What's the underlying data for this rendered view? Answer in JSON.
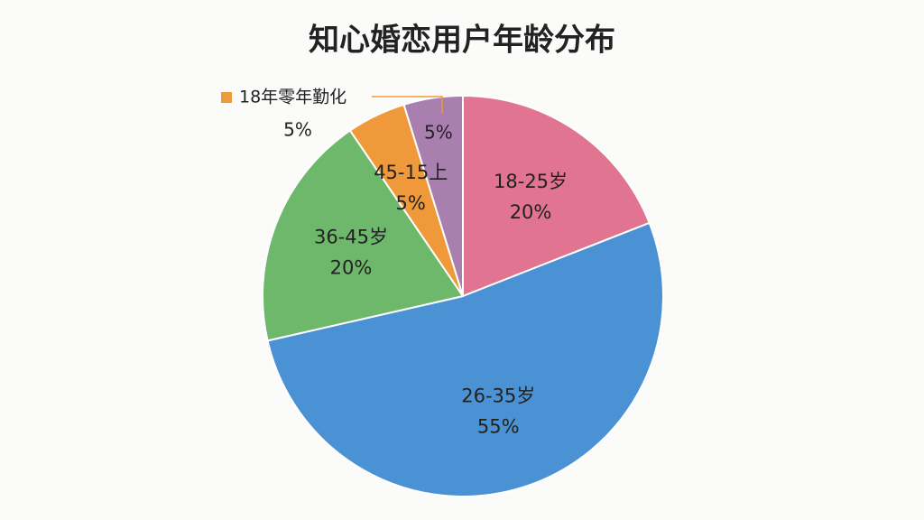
{
  "chart_data": {
    "type": "pie",
    "title": "知心婚恋用户年龄分布",
    "categories": [
      "18-25岁",
      "26-35岁",
      "36-45岁",
      "45-15上",
      "18年零年勤化"
    ],
    "values": [
      20,
      55,
      20,
      5,
      5
    ],
    "value_labels": [
      "20%",
      "55%",
      "20%",
      "5%",
      "5%"
    ],
    "colors": [
      "#e07491",
      "#4a92d4",
      "#6db86b",
      "#f0993b",
      "#a97fb0"
    ]
  }
}
